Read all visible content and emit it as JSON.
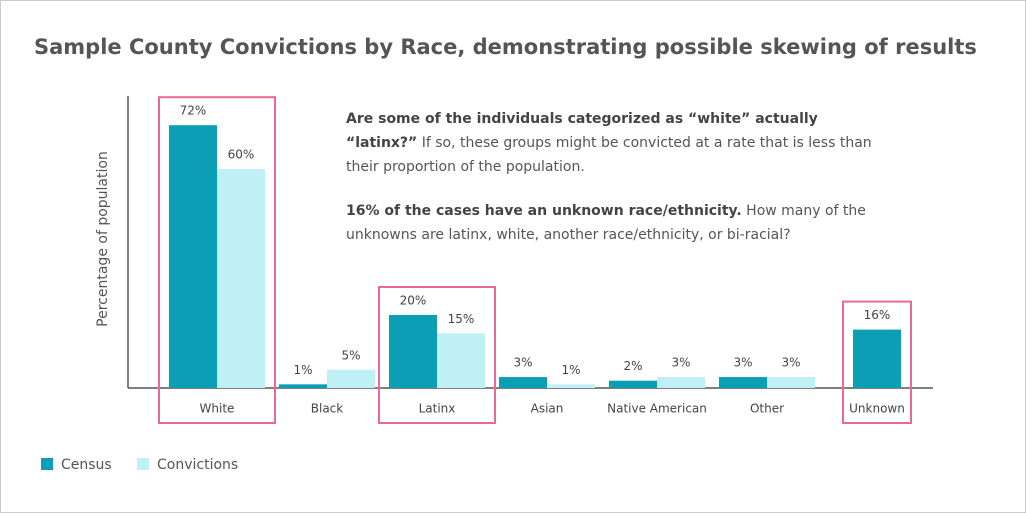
{
  "chart_data": {
    "type": "bar",
    "title": "Sample County Convictions by Race, demonstrating possible skewing of results",
    "y_label": "Percentage of population",
    "categories": [
      "White",
      "Black",
      "Latinx",
      "Asian",
      "Native American",
      "Other",
      "Unknown"
    ],
    "series": [
      {
        "name": "Census",
        "color": "#0a9fb5",
        "values": [
          72,
          1,
          20,
          3,
          2,
          3,
          16
        ],
        "value_labels": [
          "72%",
          "1%",
          "20%",
          "3%",
          "2%",
          "3%",
          "16%"
        ]
      },
      {
        "name": "Convictions",
        "color": "#bff0f6",
        "values": [
          60,
          5,
          15,
          1,
          3,
          3,
          null
        ],
        "value_labels": [
          "60%",
          "5%",
          "15%",
          "1%",
          "3%",
          "3%",
          null
        ]
      }
    ],
    "ylim": [
      0,
      80
    ],
    "highlight": [
      0,
      2,
      6
    ],
    "highlight_color": "#e8689a",
    "annotations": [
      {
        "bold": "Are some of the individuals categorized as “white” actually “latinx?”",
        "text": " If so, these groups might be convicted at a rate that is less than their proportion of the population."
      },
      {
        "bold": "16% of the cases have an unknown race/ethnicity.",
        "text": " How many of the unknowns are latinx, white, another race/ethnicity, or bi-racial?"
      }
    ]
  }
}
